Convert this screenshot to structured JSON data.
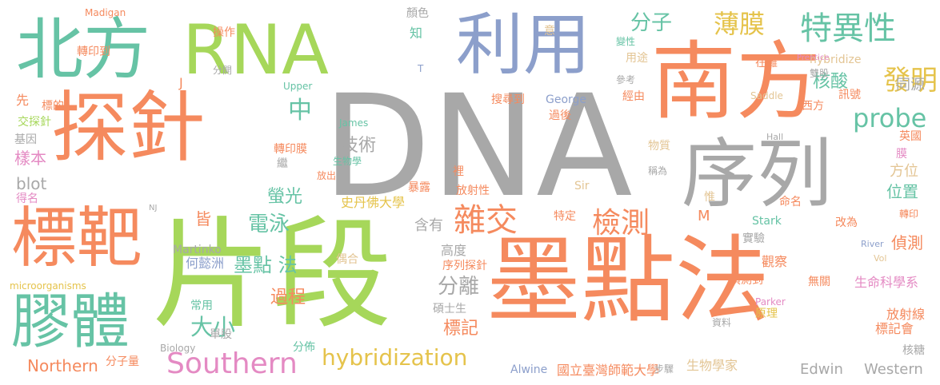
{
  "palette": {
    "orange": "#f58a5e",
    "green": "#a6d75a",
    "blue": "#8c9fcb",
    "gray": "#a8a8a8",
    "teal": "#66c3a5",
    "pink": "#e48ac3",
    "yellow": "#e5c34b",
    "tan": "#e3c594"
  },
  "words": [
    {
      "text": "DNA",
      "color": "gray"
    },
    {
      "text": "墨點法",
      "color": "orange"
    },
    {
      "text": "片段",
      "color": "green"
    },
    {
      "text": "探針",
      "color": "orange"
    },
    {
      "text": "南方",
      "color": "orange"
    },
    {
      "text": "北方",
      "color": "teal"
    },
    {
      "text": "RNA",
      "color": "green"
    },
    {
      "text": "利用",
      "color": "blue"
    },
    {
      "text": "序列",
      "color": "gray"
    },
    {
      "text": "標靶",
      "color": "orange"
    },
    {
      "text": "膠體",
      "color": "teal"
    },
    {
      "text": "Southern",
      "color": "pink"
    },
    {
      "text": "hybridization",
      "color": "yellow"
    },
    {
      "text": "雜交",
      "color": "orange"
    },
    {
      "text": "檢測",
      "color": "orange"
    },
    {
      "text": "特異性",
      "color": "teal"
    },
    {
      "text": "分子",
      "color": "teal"
    },
    {
      "text": "薄膜",
      "color": "yellow"
    },
    {
      "text": "probe",
      "color": "teal"
    },
    {
      "text": "發明",
      "color": "yellow"
    },
    {
      "text": "核酸",
      "color": "teal"
    },
    {
      "text": "電泳",
      "color": "teal"
    },
    {
      "text": "大小",
      "color": "teal"
    },
    {
      "text": "分離",
      "color": "gray"
    },
    {
      "text": "過程",
      "color": "orange"
    },
    {
      "text": "標記",
      "color": "orange"
    },
    {
      "text": "Northern",
      "color": "orange"
    },
    {
      "text": "墨點 法",
      "color": "teal"
    },
    {
      "text": "技術",
      "color": "gray"
    },
    {
      "text": "中",
      "color": "teal"
    },
    {
      "text": "螢光",
      "color": "teal"
    },
    {
      "text": "blot",
      "color": "gray"
    },
    {
      "text": "樣本",
      "color": "pink"
    },
    {
      "text": "高度",
      "color": "gray"
    },
    {
      "text": "含有",
      "color": "gray"
    },
    {
      "text": "同源",
      "color": "gray"
    },
    {
      "text": "方位",
      "color": "tan"
    },
    {
      "text": "位置",
      "color": "teal"
    },
    {
      "text": "偵測",
      "color": "orange"
    },
    {
      "text": "生命科學系",
      "color": "pink"
    },
    {
      "text": "放射線",
      "color": "orange"
    },
    {
      "text": "標記會",
      "color": "orange"
    },
    {
      "text": "Edwin",
      "color": "gray"
    },
    {
      "text": "Western",
      "color": "gray"
    },
    {
      "text": "國立臺灣師範大學",
      "color": "orange"
    },
    {
      "text": "生物學家",
      "color": "tan"
    },
    {
      "text": "Alwine",
      "color": "blue"
    },
    {
      "text": "分佈",
      "color": "teal"
    },
    {
      "text": "分子量",
      "color": "orange"
    },
    {
      "text": "Biology",
      "color": "gray"
    },
    {
      "text": "單股",
      "color": "gray"
    },
    {
      "text": "常用",
      "color": "teal"
    },
    {
      "text": "何懿洲",
      "color": "blue"
    },
    {
      "text": "偶合",
      "color": "tan"
    },
    {
      "text": "序列探針",
      "color": "orange"
    },
    {
      "text": "碩士生",
      "color": "gray"
    },
    {
      "text": "Martinko",
      "color": "gray"
    },
    {
      "text": "皆",
      "color": "orange"
    },
    {
      "text": "史丹佛大學",
      "color": "yellow"
    },
    {
      "text": "暴露",
      "color": "orange"
    },
    {
      "text": "放射性",
      "color": "orange"
    },
    {
      "text": "裡",
      "color": "orange"
    },
    {
      "text": "特定",
      "color": "orange"
    },
    {
      "text": "Sir",
      "color": "tan"
    },
    {
      "text": "M",
      "color": "orange"
    },
    {
      "text": "惟",
      "color": "tan"
    },
    {
      "text": "命名",
      "color": "orange"
    },
    {
      "text": "改為",
      "color": "orange"
    },
    {
      "text": "Stark",
      "color": "teal"
    },
    {
      "text": "實驗",
      "color": "gray"
    },
    {
      "text": "觀察",
      "color": "orange"
    },
    {
      "text": "偵測到",
      "color": "orange"
    },
    {
      "text": "無關",
      "color": "orange"
    },
    {
      "text": "Parker",
      "color": "pink"
    },
    {
      "text": "資料",
      "color": "gray"
    },
    {
      "text": "原理",
      "color": "yellow"
    },
    {
      "text": "步驟",
      "color": "gray"
    },
    {
      "text": "River",
      "color": "blue"
    },
    {
      "text": "Vol",
      "color": "tan"
    },
    {
      "text": "核糖",
      "color": "gray"
    },
    {
      "text": "轉印",
      "color": "orange"
    },
    {
      "text": "英國",
      "color": "orange"
    },
    {
      "text": "膜",
      "color": "pink"
    },
    {
      "text": "Hall",
      "color": "gray"
    },
    {
      "text": "稱為",
      "color": "gray"
    },
    {
      "text": "物質",
      "color": "tan"
    },
    {
      "text": "George",
      "color": "blue"
    },
    {
      "text": "過後",
      "color": "orange"
    },
    {
      "text": "搜尋到",
      "color": "orange"
    },
    {
      "text": "經由",
      "color": "orange"
    },
    {
      "text": "參考",
      "color": "gray"
    },
    {
      "text": "訊號",
      "color": "orange"
    },
    {
      "text": "西方",
      "color": "orange"
    },
    {
      "text": "Saddle",
      "color": "tan"
    },
    {
      "text": "在雜",
      "color": "orange"
    },
    {
      "text": "hybridize",
      "color": "tan"
    },
    {
      "text": "用途",
      "color": "tan"
    },
    {
      "text": "變性",
      "color": "teal"
    },
    {
      "text": "雙股",
      "color": "gray"
    },
    {
      "text": "Prentice",
      "color": "pink"
    },
    {
      "text": "意",
      "color": "tan"
    },
    {
      "text": "顏色",
      "color": "gray"
    },
    {
      "text": "知",
      "color": "teal"
    },
    {
      "text": "T",
      "color": "blue"
    },
    {
      "text": "James",
      "color": "teal"
    },
    {
      "text": "生物學",
      "color": "teal"
    },
    {
      "text": "放出",
      "color": "orange"
    },
    {
      "text": "轉印膜",
      "color": "orange"
    },
    {
      "text": "繼",
      "color": "gray"
    },
    {
      "text": "Upper",
      "color": "teal"
    },
    {
      "text": "分開",
      "color": "gray"
    },
    {
      "text": "操作",
      "color": "orange"
    },
    {
      "text": "轉印到",
      "color": "orange"
    },
    {
      "text": "Madigan",
      "color": "orange"
    },
    {
      "text": "J",
      "color": "orange"
    },
    {
      "text": "先",
      "color": "orange"
    },
    {
      "text": "標的",
      "color": "orange"
    },
    {
      "text": "交探針",
      "color": "green"
    },
    {
      "text": "基因",
      "color": "gray"
    },
    {
      "text": "得名",
      "color": "pink"
    },
    {
      "text": "NJ",
      "color": "gray"
    },
    {
      "text": "microorganisms",
      "color": "yellow"
    }
  ]
}
